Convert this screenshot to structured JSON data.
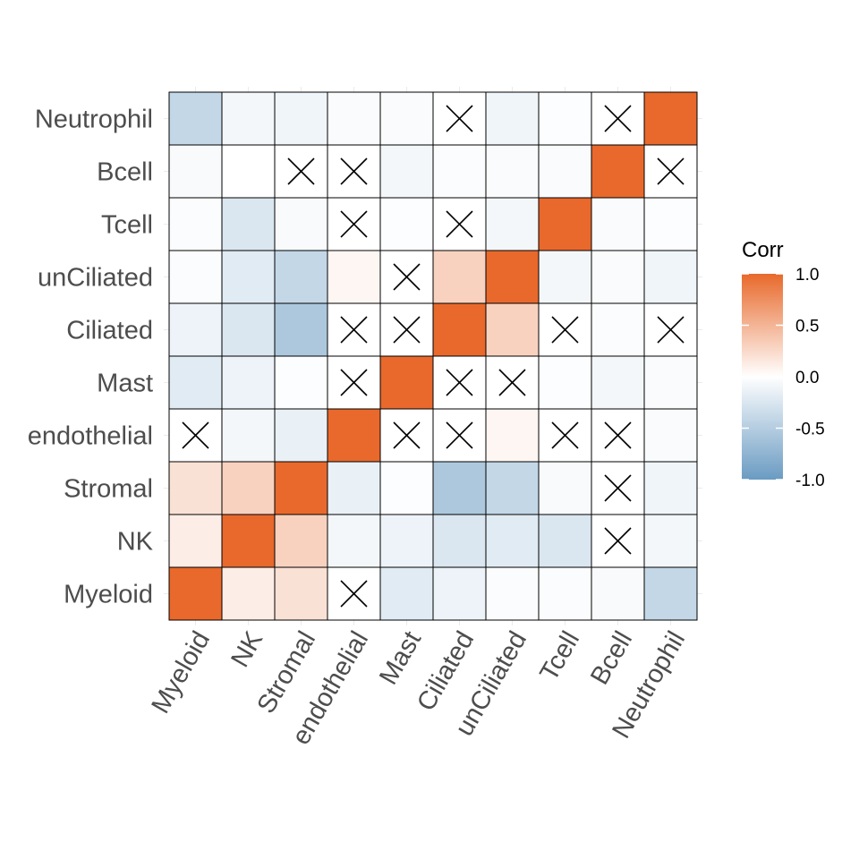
{
  "chart_data": {
    "type": "heatmap",
    "title": "",
    "xlabel": "",
    "ylabel": "",
    "categories": [
      "Myeloid",
      "NK",
      "Stromal",
      "endothelial",
      "Mast",
      "Ciliated",
      "unCiliated",
      "Tcell",
      "Bcell",
      "Neutrophil"
    ],
    "values": [
      [
        1.0,
        0.12,
        0.2,
        0.0,
        -0.2,
        -0.12,
        -0.03,
        -0.03,
        -0.05,
        -0.4
      ],
      [
        0.12,
        1.0,
        0.3,
        -0.08,
        -0.12,
        -0.25,
        -0.2,
        -0.25,
        0.0,
        -0.08
      ],
      [
        0.2,
        0.3,
        1.0,
        -0.15,
        -0.02,
        -0.55,
        -0.4,
        -0.05,
        0.02,
        -0.1
      ],
      [
        0.0,
        -0.08,
        -0.15,
        1.0,
        0.0,
        0.0,
        0.06,
        0.0,
        0.0,
        -0.04
      ],
      [
        -0.2,
        -0.12,
        -0.02,
        0.0,
        1.0,
        0.0,
        0.0,
        -0.02,
        -0.08,
        -0.04
      ],
      [
        -0.12,
        -0.25,
        -0.55,
        0.0,
        0.0,
        1.0,
        0.3,
        0.0,
        -0.03,
        0.0
      ],
      [
        -0.03,
        -0.2,
        -0.4,
        0.06,
        0.0,
        0.3,
        1.0,
        -0.08,
        -0.04,
        -0.1
      ],
      [
        -0.03,
        -0.25,
        -0.05,
        0.0,
        -0.02,
        0.0,
        -0.08,
        1.0,
        -0.04,
        -0.02
      ],
      [
        -0.05,
        0.0,
        0.02,
        0.0,
        -0.08,
        -0.03,
        -0.04,
        -0.04,
        1.0,
        0.0
      ],
      [
        -0.4,
        -0.08,
        -0.1,
        -0.04,
        -0.04,
        0.0,
        -0.1,
        -0.02,
        0.0,
        1.0
      ]
    ],
    "crossed": [
      [
        false,
        false,
        false,
        true,
        false,
        false,
        false,
        false,
        false,
        false
      ],
      [
        false,
        false,
        false,
        false,
        false,
        false,
        false,
        false,
        true,
        false
      ],
      [
        false,
        false,
        false,
        false,
        false,
        false,
        false,
        false,
        true,
        false
      ],
      [
        true,
        false,
        false,
        false,
        true,
        true,
        false,
        true,
        true,
        false
      ],
      [
        false,
        false,
        false,
        true,
        false,
        true,
        true,
        false,
        false,
        false
      ],
      [
        false,
        false,
        false,
        true,
        true,
        false,
        false,
        true,
        false,
        true
      ],
      [
        false,
        false,
        false,
        false,
        true,
        false,
        false,
        false,
        false,
        false
      ],
      [
        false,
        false,
        false,
        true,
        false,
        true,
        false,
        false,
        false,
        false
      ],
      [
        false,
        false,
        true,
        true,
        false,
        false,
        false,
        false,
        false,
        true
      ],
      [
        false,
        false,
        false,
        false,
        false,
        true,
        false,
        false,
        true,
        false
      ]
    ],
    "color_scale": {
      "low": "#6a9bc2",
      "mid": "#ffffff",
      "high": "#e8692b",
      "limits": [
        -1,
        1
      ]
    },
    "legend": {
      "title": "Corr",
      "position": "right",
      "breaks": [
        1.0,
        0.5,
        0.0,
        -0.5,
        -1.0
      ],
      "labels": [
        "1.0",
        "0.5",
        "0.0",
        "-0.5",
        "-1.0"
      ]
    }
  }
}
